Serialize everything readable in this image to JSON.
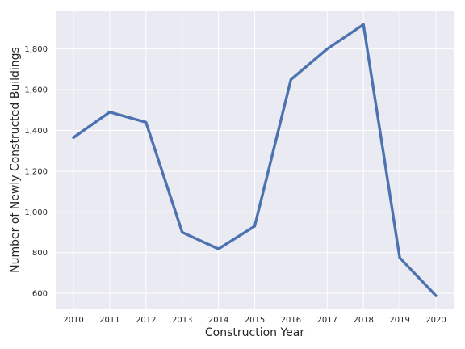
{
  "chart_data": {
    "type": "line",
    "title": "",
    "xlabel": "Construction Year",
    "ylabel": "Number of Newly Constructed Buildings",
    "x": [
      "2010",
      "2011",
      "2012",
      "2013",
      "2014",
      "2015",
      "2016",
      "2017",
      "2018",
      "2019",
      "2020"
    ],
    "series": [
      {
        "values": [
          1365,
          1490,
          1440,
          900,
          818,
          930,
          1650,
          1800,
          1920,
          775,
          588
        ],
        "color": "#4c72b0"
      }
    ],
    "yticks": [
      600,
      800,
      1000,
      1200,
      1400,
      1600,
      1800
    ],
    "ytick_labels": [
      "600",
      "800",
      "1,000",
      "1,200",
      "1,400",
      "1,600",
      "1,800"
    ],
    "ylim": [
      525,
      1985
    ],
    "grid": true,
    "legend": "none",
    "style": {
      "background": "#eaeaf2",
      "grid_color": "#ffffff"
    }
  }
}
